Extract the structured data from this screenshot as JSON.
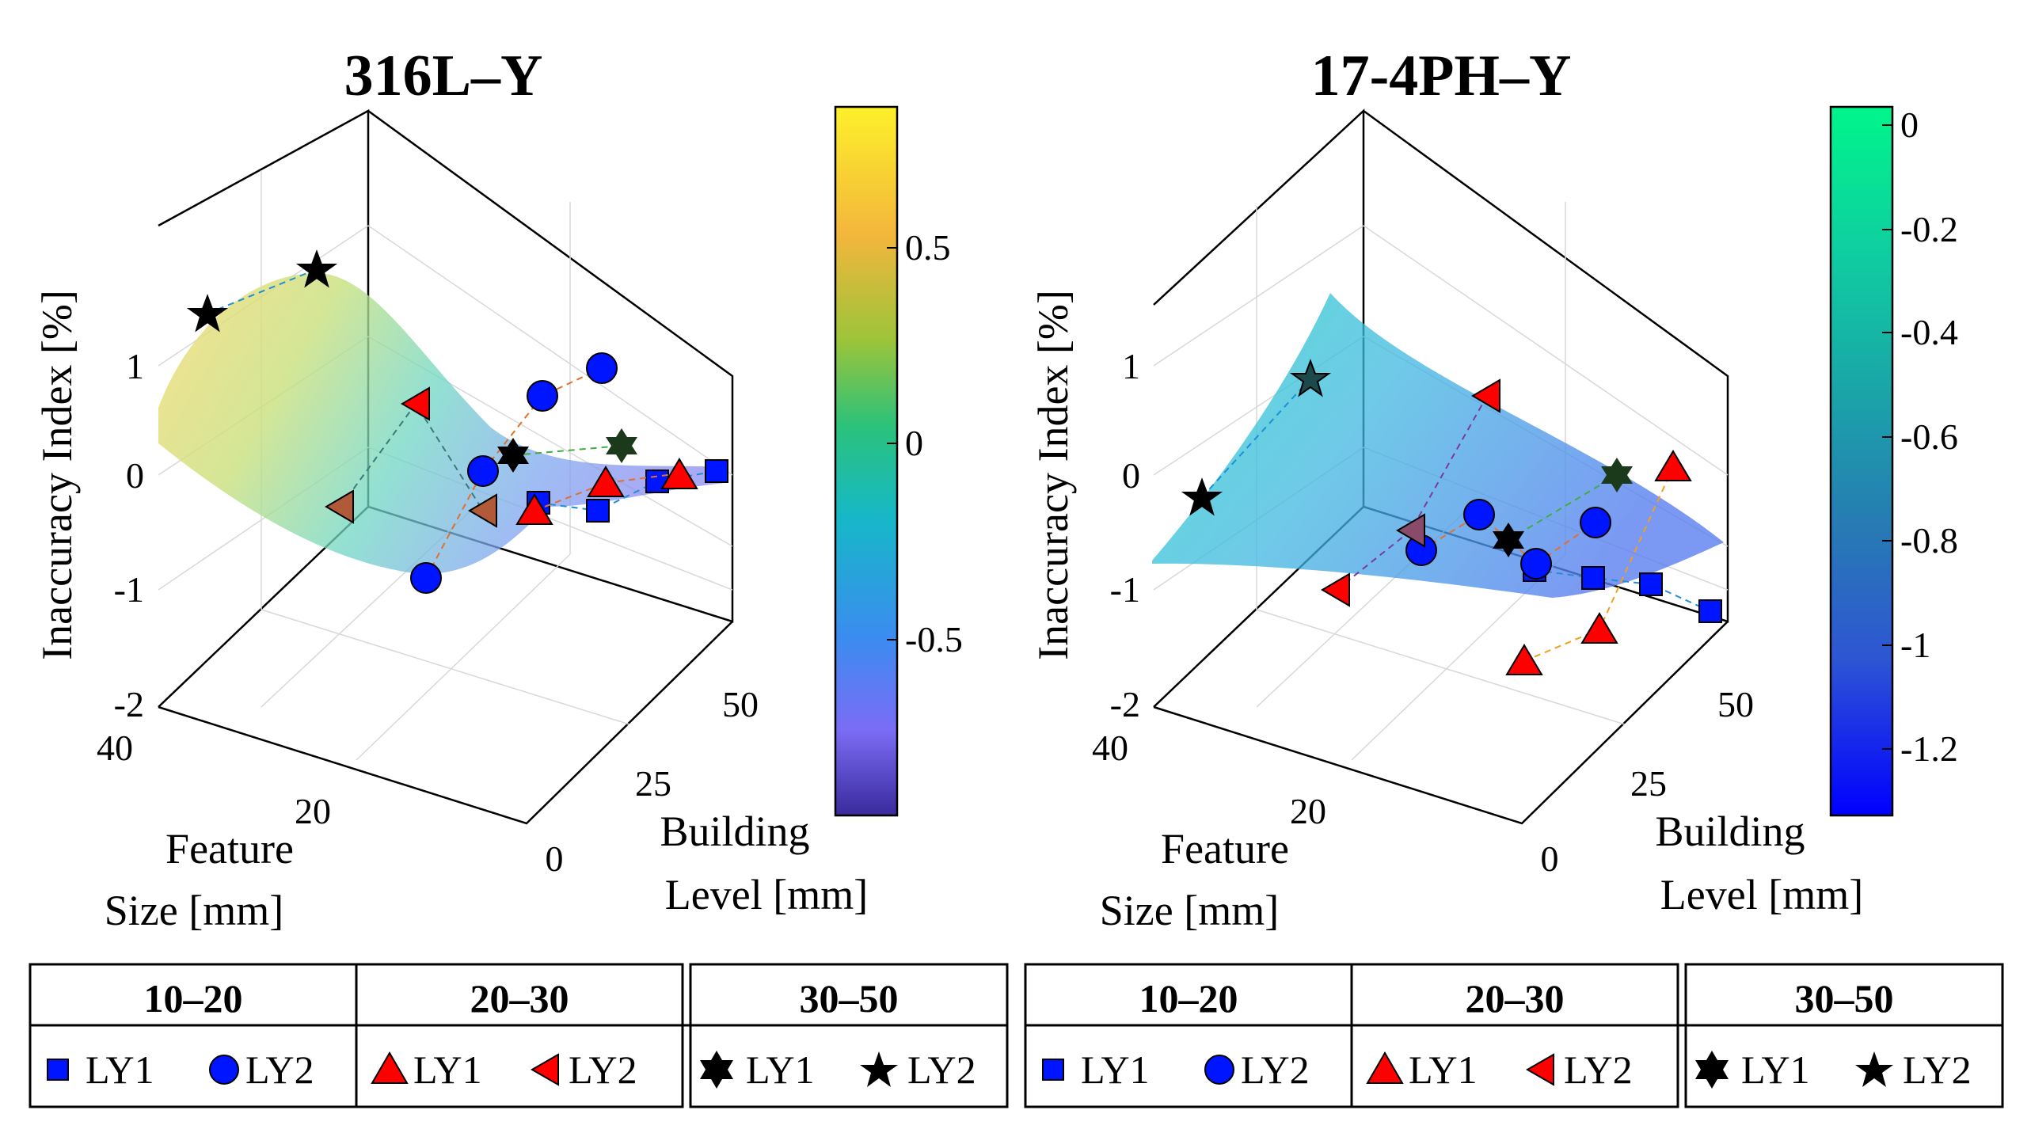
{
  "chart_data": [
    {
      "type": "surface3d",
      "title": "316L–Y",
      "zlabel": "Inaccuracy Index [%]",
      "xlabel_line1": "Feature",
      "xlabel_line2": "Size [mm]",
      "ylabel_line1": "Building",
      "ylabel_line2": "Level [mm]",
      "z_ticks": [
        "1",
        "0",
        "-1",
        "-2"
      ],
      "feature_ticks": [
        "40",
        "20"
      ],
      "level_ticks": [
        "50",
        "25",
        "0"
      ],
      "colorbar": {
        "ticks": [
          "0.5",
          "0",
          "-0.5"
        ],
        "colors": [
          "#fdf02a",
          "#f3b63c",
          "#2bc27a",
          "#16b8c8",
          "#3b8cf0",
          "#7b6cf5",
          "#3a2a9c"
        ]
      },
      "series": [
        {
          "name": "LY1",
          "group": "10–20",
          "marker": "square",
          "color": "#0015ff",
          "z": [
            -0.2,
            -0.3,
            -0.05,
            0.05
          ]
        },
        {
          "name": "LY2",
          "group": "10–20",
          "marker": "circle",
          "color": "#0015ff",
          "z": [
            -0.9,
            0.05,
            0.7,
            0.95
          ]
        },
        {
          "name": "LY1",
          "group": "20–30",
          "marker": "triangle-up",
          "color": "#ff0000",
          "z": [
            -0.3,
            -0.05,
            0.0
          ]
        },
        {
          "name": "LY2",
          "group": "20–30",
          "marker": "triangle-left",
          "color": "#ff0000",
          "z": [
            -0.3,
            0.65,
            -0.3
          ]
        },
        {
          "name": "LY1",
          "group": "30–50",
          "marker": "hexagram",
          "color": "#000000",
          "z": [
            0.2,
            0.25
          ]
        },
        {
          "name": "LY2",
          "group": "30–50",
          "marker": "pentagram",
          "color": "#000000",
          "z": [
            1.45,
            1.8
          ]
        }
      ],
      "legend": {
        "groups": [
          "10–20",
          "20–30",
          "30–50"
        ],
        "labels": [
          "LY1",
          "LY2",
          "LY1",
          "LY2",
          "LY1",
          "LY2"
        ]
      }
    },
    {
      "type": "surface3d",
      "title": "17-4PH–Y",
      "zlabel": "Inaccuracy Index [%]",
      "xlabel_line1": "Feature",
      "xlabel_line2": "Size [mm]",
      "ylabel_line1": "Building",
      "ylabel_line2": "Level [mm]",
      "z_ticks": [
        "1",
        "0",
        "-1",
        "-2"
      ],
      "feature_ticks": [
        "40",
        "20"
      ],
      "level_ticks": [
        "50",
        "25",
        "0"
      ],
      "colorbar": {
        "ticks": [
          "0",
          "-0.2",
          "-0.4",
          "-0.6",
          "-0.8",
          "-1",
          "-1.2"
        ],
        "colors": [
          "#00f58a",
          "#0ecfa0",
          "#1aa5a8",
          "#2779b4",
          "#2e55d4",
          "#1a2cf8",
          "#0000ff"
        ]
      },
      "series": [
        {
          "name": "LY1",
          "group": "10–20",
          "marker": "square",
          "color": "#0015ff",
          "z": [
            -0.8,
            -0.9,
            -0.95,
            -1.2
          ]
        },
        {
          "name": "LY2",
          "group": "10–20",
          "marker": "circle",
          "color": "#0015ff",
          "z": [
            -0.65,
            -0.35,
            -0.4
          ]
        },
        {
          "name": "LY1",
          "group": "20–30",
          "marker": "triangle-up",
          "color": "#ff0000",
          "z": [
            -1.6,
            -1.35,
            0.1
          ]
        },
        {
          "name": "LY2",
          "group": "20–30",
          "marker": "triangle-left",
          "color": "#ff0000",
          "z": [
            -1.0,
            -0.5,
            0.7
          ]
        },
        {
          "name": "LY1",
          "group": "30–50",
          "marker": "hexagram",
          "color": "#000000",
          "z": [
            -0.55,
            0.0
          ]
        },
        {
          "name": "LY2",
          "group": "30–50",
          "marker": "pentagram",
          "color": "#000000",
          "z": [
            -0.15,
            0.85
          ]
        }
      ],
      "legend": {
        "groups": [
          "10–20",
          "20–30",
          "30–50"
        ],
        "labels": [
          "LY1",
          "LY2",
          "LY1",
          "LY2",
          "LY1",
          "LY2"
        ]
      }
    }
  ]
}
